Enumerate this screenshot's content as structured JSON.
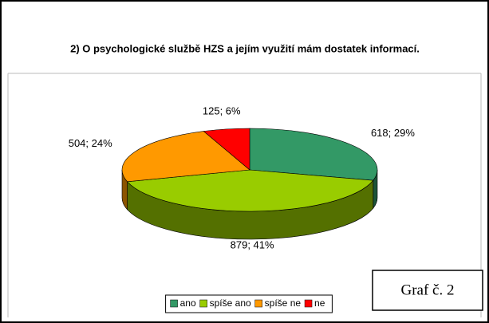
{
  "chart_data": {
    "type": "pie",
    "title": "2) O psychologické službě HZS a jejím využití mám dostatek informací.",
    "annotation": "Graf č. 2",
    "categories": [
      "ano",
      "spíše ano",
      "spíše ne",
      "ne"
    ],
    "values": [
      618,
      879,
      504,
      125
    ],
    "value_labels": [
      "618; 29%",
      "879; 41%",
      "504; 24%",
      "125; 6%"
    ],
    "colors": [
      "#339966",
      "#99cc00",
      "#ff9900",
      "#ff0000"
    ],
    "legend": "bottom"
  }
}
